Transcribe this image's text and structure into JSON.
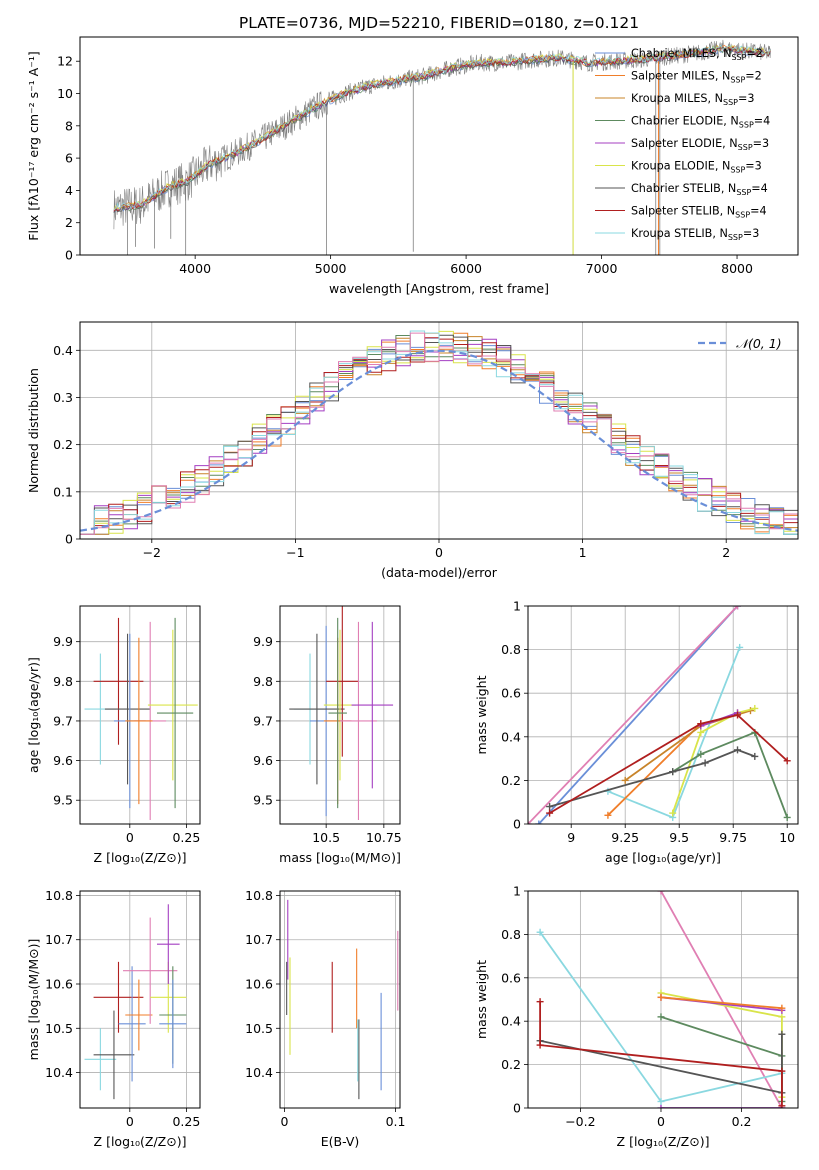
{
  "figure": {
    "title": "PLATE=0736, MJD=52210, FIBERID=0180, z=0.121"
  },
  "colors": {
    "chabrier_miles": "#6a8fd8",
    "salpeter_miles": "#f07e2a",
    "kroupa_miles": "#c8842a",
    "chabrier_elodie": "#5d8a5f",
    "salpeter_elodie": "#a43fc2",
    "kroupa_elodie": "#d9e44a",
    "chabrier_stelib": "#555555",
    "salpeter_stelib": "#b01f1f",
    "kroupa_stelib": "#8ad8e0",
    "pink": "#e07fb3",
    "data": "#808080"
  },
  "chart_data": [
    {
      "id": "spectrum",
      "type": "line",
      "title": "PLATE=0736, MJD=52210, FIBERID=0180, z=0.121",
      "xlabel": "wavelength [Angstrom, rest frame]",
      "ylabel": "Flux [fλ10⁻¹⁷ erg cm⁻² s⁻¹ A⁻¹]",
      "xlim": [
        3150,
        8450
      ],
      "ylim": [
        0,
        13.5
      ],
      "xticks": [
        4000,
        5000,
        6000,
        7000,
        8000
      ],
      "yticks": [
        0,
        2,
        4,
        6,
        8,
        10,
        12
      ],
      "legend_position": "top-right",
      "legend": [
        {
          "label": "Chabrier MILES, N",
          "sub": "SSP",
          "suffix": "=2",
          "color_key": "chabrier_miles"
        },
        {
          "label": "Salpeter MILES, N",
          "sub": "SSP",
          "suffix": "=2",
          "color_key": "salpeter_miles"
        },
        {
          "label": "Kroupa MILES, N",
          "sub": "SSP",
          "suffix": "=3",
          "color_key": "kroupa_miles"
        },
        {
          "label": "Chabrier ELODIE, N",
          "sub": "SSP",
          "suffix": "=4",
          "color_key": "chabrier_elodie"
        },
        {
          "label": "Salpeter ELODIE, N",
          "sub": "SSP",
          "suffix": "=3",
          "color_key": "salpeter_elodie"
        },
        {
          "label": "Kroupa ELODIE, N",
          "sub": "SSP",
          "suffix": "=3",
          "color_key": "kroupa_elodie"
        },
        {
          "label": "Chabrier STELIB, N",
          "sub": "SSP",
          "suffix": "=4",
          "color_key": "chabrier_stelib"
        },
        {
          "label": "Salpeter STELIB, N",
          "sub": "SSP",
          "suffix": "=4",
          "color_key": "salpeter_stelib"
        },
        {
          "label": "Kroupa STELIB, N",
          "sub": "SSP",
          "suffix": "=3",
          "color_key": "kroupa_stelib"
        }
      ],
      "continuum": [
        [
          3400,
          2.9
        ],
        [
          3600,
          3.1
        ],
        [
          3800,
          4.2
        ],
        [
          3950,
          4.6
        ],
        [
          4100,
          5.6
        ],
        [
          4300,
          6.3
        ],
        [
          4500,
          7.2
        ],
        [
          4700,
          8.2
        ],
        [
          4900,
          9.2
        ],
        [
          5100,
          10.0
        ],
        [
          5300,
          10.5
        ],
        [
          5500,
          10.8
        ],
        [
          5700,
          11.1
        ],
        [
          5900,
          11.6
        ],
        [
          6100,
          11.9
        ],
        [
          6300,
          11.9
        ],
        [
          6500,
          12.1
        ],
        [
          6700,
          12.2
        ],
        [
          6900,
          11.9
        ],
        [
          7100,
          12.0
        ],
        [
          7300,
          12.1
        ],
        [
          7500,
          12.3
        ],
        [
          7700,
          12.5
        ],
        [
          7900,
          12.8
        ],
        [
          8100,
          12.6
        ],
        [
          8250,
          12.5
        ]
      ],
      "spikes": [
        [
          3500,
          0
        ],
        [
          3560,
          0.5
        ],
        [
          3700,
          0.4
        ],
        [
          3820,
          1.0
        ],
        [
          3930,
          0
        ],
        [
          4970,
          0
        ],
        [
          5610,
          0.2
        ],
        [
          6790,
          0
        ],
        [
          7400,
          0
        ],
        [
          7430,
          0
        ]
      ]
    },
    {
      "id": "residuals",
      "type": "histogram",
      "xlabel": "(data-model)/error",
      "ylabel": "Normed distribution",
      "xlim": [
        -2.5,
        2.5
      ],
      "ylim": [
        0,
        0.46
      ],
      "xticks": [
        -2,
        -1,
        0,
        1,
        2
      ],
      "yticks": [
        0.0,
        0.1,
        0.2,
        0.3,
        0.4
      ],
      "legend_position": "top-right",
      "reference_curve": {
        "label": "𝒩(0, 1)",
        "mean": 0,
        "sigma": 1,
        "color_key": "chabrier_miles"
      },
      "bin_width": 0.1
    },
    {
      "id": "age_vs_z",
      "type": "scatter",
      "xlabel": "Z [log₁₀(Z/Z⊙)]",
      "ylabel": "age  [log₁₀(age/yr)]",
      "xlim": [
        -0.22,
        0.31
      ],
      "ylim": [
        9.44,
        9.99
      ],
      "xticks": [
        0.0,
        0.25
      ],
      "yticks": [
        9.5,
        9.6,
        9.7,
        9.8,
        9.9
      ],
      "points": [
        {
          "x": -0.13,
          "y": 9.73,
          "xerr": 0.07,
          "yerr": 0.14,
          "color_key": "kroupa_stelib"
        },
        {
          "x": -0.05,
          "y": 9.8,
          "xerr": 0.11,
          "yerr": 0.16,
          "color_key": "salpeter_stelib"
        },
        {
          "x": -0.01,
          "y": 9.73,
          "xerr": 0.1,
          "yerr": 0.19,
          "color_key": "chabrier_stelib"
        },
        {
          "x": 0.0,
          "y": 9.7,
          "xerr": 0.07,
          "yerr": 0.22,
          "color_key": "chabrier_miles"
        },
        {
          "x": 0.09,
          "y": 9.7,
          "xerr": 0.07,
          "yerr": 0.25,
          "color_key": "pink"
        },
        {
          "x": 0.04,
          "y": 9.7,
          "xerr": 0.06,
          "yerr": 0.21,
          "color_key": "salpeter_miles"
        },
        {
          "x": 0.19,
          "y": 9.74,
          "xerr": 0.11,
          "yerr": 0.19,
          "color_key": "kroupa_elodie"
        },
        {
          "x": 0.2,
          "y": 9.72,
          "xerr": 0.08,
          "yerr": 0.24,
          "color_key": "chabrier_elodie"
        }
      ]
    },
    {
      "id": "age_vs_mass",
      "type": "scatter",
      "xlabel": "mass [log₁₀(M/M⊙)]",
      "ylabel": "",
      "xlim": [
        10.3,
        10.82
      ],
      "ylim": [
        9.44,
        9.99
      ],
      "xticks": [
        10.5,
        10.75
      ],
      "yticks": [
        9.5,
        9.6,
        9.7,
        9.8,
        9.9
      ],
      "points": [
        {
          "x": 10.43,
          "y": 9.73,
          "xerr": 0.07,
          "yerr": 0.14,
          "color_key": "kroupa_stelib"
        },
        {
          "x": 10.5,
          "y": 9.7,
          "xerr": 0.07,
          "yerr": 0.24,
          "color_key": "chabrier_miles"
        },
        {
          "x": 10.46,
          "y": 9.73,
          "xerr": 0.12,
          "yerr": 0.19,
          "color_key": "chabrier_stelib"
        },
        {
          "x": 10.56,
          "y": 9.74,
          "xerr": 0.07,
          "yerr": 0.19,
          "color_key": "kroupa_elodie"
        },
        {
          "x": 10.57,
          "y": 9.8,
          "xerr": 0.07,
          "yerr": 0.19,
          "color_key": "salpeter_stelib"
        },
        {
          "x": 10.55,
          "y": 9.7,
          "xerr": 0.06,
          "yerr": 0.21,
          "color_key": "salpeter_miles"
        },
        {
          "x": 10.55,
          "y": 9.72,
          "xerr": 0.04,
          "yerr": 0.24,
          "color_key": "chabrier_elodie"
        },
        {
          "x": 10.64,
          "y": 9.7,
          "xerr": 0.08,
          "yerr": 0.25,
          "color_key": "pink"
        },
        {
          "x": 10.7,
          "y": 9.74,
          "xerr": 0.09,
          "yerr": 0.21,
          "color_key": "salpeter_elodie"
        }
      ]
    },
    {
      "id": "massweight_vs_age",
      "type": "line",
      "xlabel": "age  [log₁₀(age/yr)]",
      "ylabel": "mass weight",
      "xlim": [
        8.8,
        10.05
      ],
      "ylim": [
        0,
        1
      ],
      "xticks": [
        9.0,
        9.25,
        9.5,
        9.75,
        10.0
      ],
      "yticks": [
        0.0,
        0.2,
        0.4,
        0.6,
        0.8,
        1.0
      ],
      "series": [
        {
          "color_key": "chabrier_miles",
          "points": [
            [
              8.85,
              0.0
            ],
            [
              9.77,
              1.0
            ]
          ]
        },
        {
          "color_key": "pink",
          "points": [
            [
              8.8,
              0.0
            ],
            [
              9.77,
              1.0
            ]
          ]
        },
        {
          "color_key": "kroupa_stelib",
          "points": [
            [
              9.17,
              0.15
            ],
            [
              9.47,
              0.03
            ],
            [
              9.78,
              0.81
            ]
          ]
        },
        {
          "color_key": "salpeter_miles",
          "points": [
            [
              9.17,
              0.04
            ],
            [
              9.6,
              0.46
            ]
          ]
        },
        {
          "color_key": "kroupa_miles",
          "points": [
            [
              9.25,
              0.2
            ],
            [
              9.6,
              0.45
            ],
            [
              9.83,
              0.52
            ]
          ]
        },
        {
          "color_key": "kroupa_elodie",
          "points": [
            [
              9.47,
              0.05
            ],
            [
              9.6,
              0.42
            ],
            [
              9.77,
              0.51
            ],
            [
              9.85,
              0.53
            ]
          ]
        },
        {
          "color_key": "salpeter_elodie",
          "points": [
            [
              9.6,
              0.45
            ],
            [
              9.77,
              0.51
            ]
          ]
        },
        {
          "color_key": "chabrier_elodie",
          "points": [
            [
              9.47,
              0.24
            ],
            [
              9.6,
              0.32
            ],
            [
              9.85,
              0.42
            ],
            [
              10.0,
              0.03
            ]
          ]
        },
        {
          "color_key": "chabrier_stelib",
          "points": [
            [
              8.9,
              0.08
            ],
            [
              9.47,
              0.24
            ],
            [
              9.62,
              0.28
            ],
            [
              9.77,
              0.34
            ],
            [
              9.85,
              0.31
            ]
          ]
        },
        {
          "color_key": "salpeter_stelib",
          "points": [
            [
              8.9,
              0.05
            ],
            [
              9.6,
              0.46
            ],
            [
              9.77,
              0.5
            ],
            [
              10.0,
              0.29
            ]
          ]
        }
      ]
    },
    {
      "id": "mass_vs_z",
      "type": "scatter",
      "xlabel": "Z [log₁₀(Z/Z⊙)]",
      "ylabel": "mass [log₁₀(M/M⊙)]",
      "xlim": [
        -0.22,
        0.31
      ],
      "ylim": [
        10.32,
        10.81
      ],
      "xticks": [
        0.0,
        0.25
      ],
      "yticks": [
        10.4,
        10.5,
        10.6,
        10.7,
        10.8
      ],
      "points": [
        {
          "x": -0.13,
          "y": 10.43,
          "xerr": 0.07,
          "yerr": 0.07,
          "color_key": "kroupa_stelib"
        },
        {
          "x": -0.07,
          "y": 10.44,
          "xerr": 0.09,
          "yerr": 0.1,
          "color_key": "chabrier_stelib"
        },
        {
          "x": -0.05,
          "y": 10.57,
          "xerr": 0.11,
          "yerr": 0.08,
          "color_key": "salpeter_stelib"
        },
        {
          "x": 0.01,
          "y": 10.51,
          "xerr": 0.06,
          "yerr": 0.13,
          "color_key": "chabrier_miles"
        },
        {
          "x": 0.04,
          "y": 10.53,
          "xerr": 0.06,
          "yerr": 0.08,
          "color_key": "salpeter_miles"
        },
        {
          "x": 0.09,
          "y": 10.63,
          "xerr": 0.12,
          "yerr": 0.12,
          "color_key": "pink"
        },
        {
          "x": 0.17,
          "y": 10.57,
          "xerr": 0.08,
          "yerr": 0.08,
          "color_key": "kroupa_elodie"
        },
        {
          "x": 0.19,
          "y": 10.53,
          "xerr": 0.06,
          "yerr": 0.11,
          "color_key": "chabrier_elodie"
        },
        {
          "x": 0.19,
          "y": 10.51,
          "xerr": 0.06,
          "yerr": 0.1,
          "color_key": "chabrier_miles"
        },
        {
          "x": 0.17,
          "y": 10.69,
          "xerr": 0.05,
          "yerr": 0.09,
          "color_key": "salpeter_elodie"
        }
      ]
    },
    {
      "id": "mass_vs_ebv",
      "type": "scatter",
      "xlabel": "E(B-V)",
      "ylabel": "",
      "xlim": [
        -0.004,
        0.104
      ],
      "ylim": [
        10.32,
        10.81
      ],
      "xticks": [
        0.0,
        0.1
      ],
      "yticks": [
        10.4,
        10.5,
        10.6,
        10.7,
        10.8
      ],
      "points": [
        {
          "x": 0.003,
          "y": 10.7,
          "yerr": 0.09,
          "color_key": "salpeter_elodie"
        },
        {
          "x": 0.002,
          "y": 10.59,
          "yerr": 0.06,
          "color_key": "chabrier_stelib"
        },
        {
          "x": 0.005,
          "y": 10.55,
          "yerr": 0.11,
          "color_key": "kroupa_elodie"
        },
        {
          "x": 0.043,
          "y": 10.57,
          "yerr": 0.08,
          "color_key": "salpeter_stelib"
        },
        {
          "x": 0.065,
          "y": 10.59,
          "yerr": 0.09,
          "color_key": "salpeter_miles"
        },
        {
          "x": 0.067,
          "y": 10.43,
          "yerr": 0.09,
          "color_key": "chabrier_stelib"
        },
        {
          "x": 0.066,
          "y": 10.45,
          "yerr": 0.07,
          "color_key": "kroupa_stelib"
        },
        {
          "x": 0.087,
          "y": 10.47,
          "yerr": 0.11,
          "color_key": "chabrier_miles"
        },
        {
          "x": 0.102,
          "y": 10.63,
          "yerr": 0.09,
          "color_key": "pink"
        }
      ]
    },
    {
      "id": "massweight_vs_z",
      "type": "line",
      "xlabel": "Z [log₁₀(Z/Z⊙)]",
      "ylabel": "mass weight",
      "xlim": [
        -0.33,
        0.34
      ],
      "ylim": [
        0,
        1
      ],
      "xticks": [
        -0.2,
        0.0,
        0.2
      ],
      "yticks": [
        0.0,
        0.2,
        0.4,
        0.6,
        0.8,
        1.0
      ],
      "series": [
        {
          "color_key": "pink",
          "points": [
            [
              0.0,
              1.0
            ],
            [
              0.3,
              0.0
            ]
          ]
        },
        {
          "color_key": "salpeter_elodie",
          "points": [
            [
              0.0,
              0.0
            ],
            [
              0.3,
              0.0
            ]
          ]
        },
        {
          "color_key": "kroupa_stelib",
          "points": [
            [
              -0.3,
              0.81
            ],
            [
              0.0,
              0.03
            ],
            [
              0.3,
              0.16
            ]
          ]
        },
        {
          "color_key": "kroupa_elodie",
          "points": [
            [
              0.0,
              0.53
            ],
            [
              0.3,
              0.42
            ],
            [
              0.3,
              0.05
            ]
          ]
        },
        {
          "color_key": "salpeter_elodie",
          "points": [
            [
              0.0,
              0.51
            ],
            [
              0.3,
              0.45
            ]
          ]
        },
        {
          "color_key": "salpeter_miles",
          "points": [
            [
              0.0,
              0.51
            ],
            [
              0.3,
              0.46
            ]
          ]
        },
        {
          "color_key": "chabrier_elodie",
          "points": [
            [
              0.0,
              0.42
            ],
            [
              0.3,
              0.24
            ],
            [
              0.3,
              0.03
            ]
          ]
        },
        {
          "color_key": "chabrier_stelib",
          "points": [
            [
              -0.3,
              0.31
            ],
            [
              0.3,
              0.07
            ],
            [
              0.3,
              0.34
            ]
          ]
        },
        {
          "color_key": "salpeter_stelib",
          "points": [
            [
              -0.3,
              0.49
            ],
            [
              -0.3,
              0.29
            ],
            [
              0.3,
              0.17
            ],
            [
              0.3,
              0.01
            ]
          ]
        }
      ]
    }
  ]
}
